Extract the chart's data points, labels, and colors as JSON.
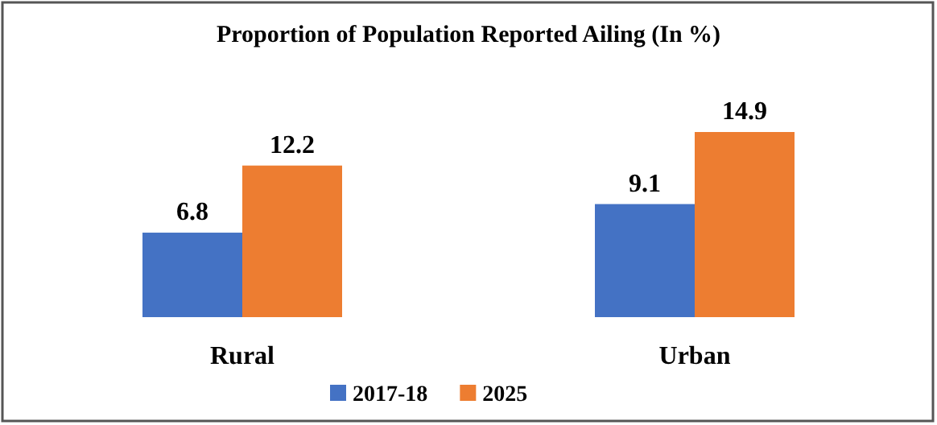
{
  "chart_data": {
    "type": "bar",
    "title": "Proportion of Population Reported Ailing (In %)",
    "categories": [
      "Rural",
      "Urban"
    ],
    "series": [
      {
        "name": "2017-18",
        "color": "#4472c4",
        "values": [
          6.8,
          9.1
        ]
      },
      {
        "name": "2025",
        "color": "#ed7d31",
        "values": [
          12.2,
          14.9
        ]
      }
    ],
    "data_labels": true,
    "legend": "bottom"
  }
}
